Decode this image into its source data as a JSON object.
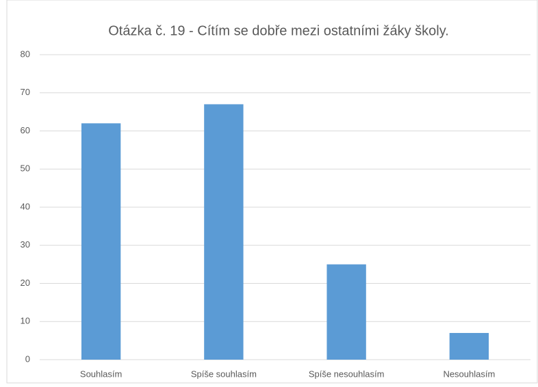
{
  "chart_data": {
    "type": "bar",
    "title": "Otázka č. 19 - Cítím se dobře mezi ostatními žáky školy.",
    "categories": [
      "Souhlasím",
      "Spíše souhlasím",
      "Spíše nesouhlasím",
      "Nesouhlasím"
    ],
    "values": [
      62,
      67,
      25,
      7
    ],
    "color": "#5b9bd5",
    "ylim": [
      0,
      80
    ],
    "yticks": [
      0,
      10,
      20,
      30,
      40,
      50,
      60,
      70,
      80
    ],
    "grid": true
  }
}
